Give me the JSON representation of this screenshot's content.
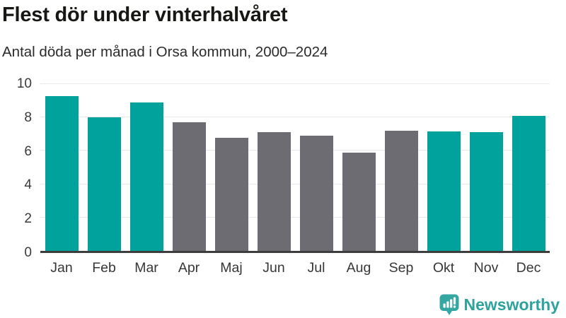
{
  "chart_data": {
    "type": "bar",
    "title": "Flest dör under vinterhalvåret",
    "subtitle": "Antal döda per månad i Orsa kommun, 2000–2024",
    "categories": [
      "Jan",
      "Feb",
      "Mar",
      "Apr",
      "Maj",
      "Jun",
      "Jul",
      "Aug",
      "Sep",
      "Okt",
      "Nov",
      "Dec"
    ],
    "values": [
      9.3,
      8.0,
      8.9,
      7.7,
      6.8,
      7.1,
      6.9,
      5.9,
      7.2,
      7.15,
      7.1,
      8.1
    ],
    "highlighted": [
      true,
      true,
      true,
      false,
      false,
      false,
      false,
      false,
      false,
      true,
      true,
      true
    ],
    "xlabel": "",
    "ylabel": "",
    "ylim": [
      0,
      10
    ],
    "yticks": [
      0,
      2,
      4,
      6,
      8,
      10
    ],
    "grid": true,
    "legend": "none",
    "colors": {
      "highlight": "#00a29b",
      "muted": "#6d6c73",
      "gridline": "#e8e8e8",
      "axis": "#3d3d3d"
    }
  },
  "branding": {
    "logo_text": "Newsworthy",
    "logo_icon": "bar-chart-speech-bubble-icon",
    "logo_color": "#2ea39e"
  }
}
